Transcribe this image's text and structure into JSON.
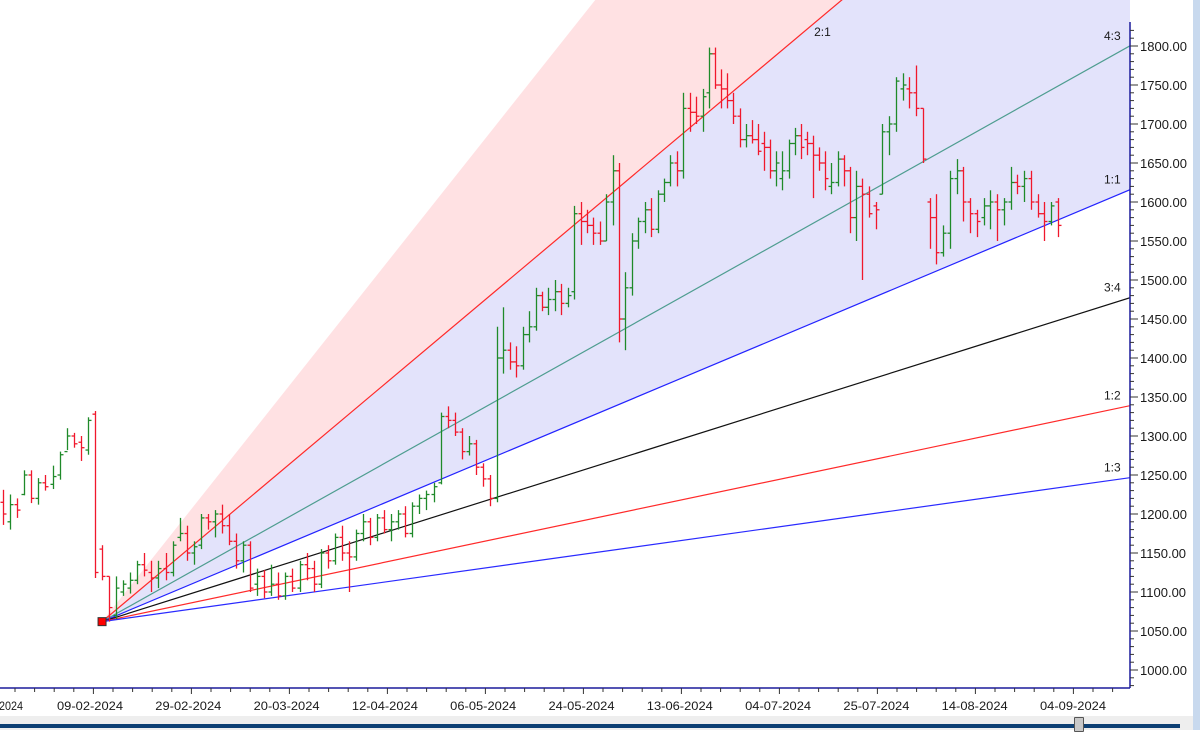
{
  "chart_data": {
    "type": "ohlc",
    "title": "",
    "xlabel": "",
    "ylabel": "",
    "ylim": [
      1000,
      1800
    ],
    "y_ticks": [
      "1000.00",
      "1050.00",
      "1100.00",
      "1150.00",
      "1200.00",
      "1250.00",
      "1300.00",
      "1350.00",
      "1400.00",
      "1450.00",
      "1500.00",
      "1550.00",
      "1600.00",
      "1650.00",
      "1700.00",
      "1750.00",
      "1800.00"
    ],
    "x_ticks": [
      "2024",
      "09-02-2024",
      "29-02-2024",
      "20-03-2024",
      "12-04-2024",
      "06-05-2024",
      "24-05-2024",
      "13-06-2024",
      "04-07-2024",
      "25-07-2024",
      "14-08-2024",
      "04-09-2024"
    ],
    "grid": false,
    "colors": {
      "up": "#1f8a2a",
      "down": "#f0182c",
      "axis": "#1c1c9c",
      "fan_fill_upper": "#ffe1e3",
      "fan_fill_main": "#e3e3fb"
    },
    "bars_ohlc": [
      [
        1215,
        1231,
        1186,
        1200
      ],
      [
        1190,
        1225,
        1180,
        1212
      ],
      [
        1212,
        1220,
        1195,
        1205
      ],
      [
        1225,
        1256,
        1224,
        1250
      ],
      [
        1250,
        1256,
        1214,
        1220
      ],
      [
        1220,
        1246,
        1212,
        1240
      ],
      [
        1240,
        1250,
        1230,
        1235
      ],
      [
        1238,
        1262,
        1232,
        1248
      ],
      [
        1250,
        1280,
        1244,
        1276
      ],
      [
        1280,
        1310,
        1282,
        1300
      ],
      [
        1300,
        1304,
        1285,
        1290
      ],
      [
        1292,
        1300,
        1268,
        1285
      ],
      [
        1282,
        1324,
        1276,
        1320
      ],
      [
        1328,
        1332,
        1118,
        1125
      ],
      [
        1155,
        1160,
        1115,
        1120
      ],
      [
        1120,
        1120,
        1062,
        1080
      ],
      [
        1070,
        1120,
        1065,
        1105
      ],
      [
        1100,
        1115,
        1095,
        1110
      ],
      [
        1105,
        1125,
        1098,
        1115
      ],
      [
        1115,
        1140,
        1110,
        1135
      ],
      [
        1135,
        1150,
        1120,
        1128
      ],
      [
        1125,
        1140,
        1100,
        1118
      ],
      [
        1118,
        1140,
        1105,
        1130
      ],
      [
        1130,
        1150,
        1115,
        1125
      ],
      [
        1125,
        1165,
        1120,
        1160
      ],
      [
        1170,
        1195,
        1165,
        1175
      ],
      [
        1175,
        1185,
        1140,
        1150
      ],
      [
        1150,
        1165,
        1135,
        1158
      ],
      [
        1160,
        1200,
        1155,
        1195
      ],
      [
        1195,
        1200,
        1180,
        1190
      ],
      [
        1190,
        1205,
        1170,
        1200
      ],
      [
        1200,
        1212,
        1175,
        1185
      ],
      [
        1185,
        1200,
        1160,
        1165
      ],
      [
        1165,
        1175,
        1130,
        1140
      ],
      [
        1140,
        1165,
        1125,
        1160
      ],
      [
        1160,
        1165,
        1100,
        1105
      ],
      [
        1110,
        1130,
        1095,
        1120
      ],
      [
        1120,
        1128,
        1092,
        1100
      ],
      [
        1100,
        1135,
        1095,
        1110
      ],
      [
        1110,
        1125,
        1090,
        1095
      ],
      [
        1095,
        1125,
        1090,
        1120
      ],
      [
        1120,
        1130,
        1100,
        1105
      ],
      [
        1105,
        1140,
        1100,
        1135
      ],
      [
        1135,
        1150,
        1115,
        1130
      ],
      [
        1130,
        1140,
        1100,
        1110
      ],
      [
        1110,
        1155,
        1105,
        1150
      ],
      [
        1150,
        1160,
        1130,
        1140
      ],
      [
        1140,
        1175,
        1135,
        1170
      ],
      [
        1170,
        1185,
        1140,
        1150
      ],
      [
        1150,
        1165,
        1100,
        1145
      ],
      [
        1145,
        1180,
        1140,
        1175
      ],
      [
        1175,
        1200,
        1165,
        1190
      ],
      [
        1190,
        1195,
        1160,
        1170
      ],
      [
        1170,
        1200,
        1165,
        1195
      ],
      [
        1195,
        1205,
        1175,
        1180
      ],
      [
        1180,
        1200,
        1165,
        1190
      ],
      [
        1190,
        1205,
        1180,
        1200
      ],
      [
        1200,
        1210,
        1170,
        1175
      ],
      [
        1175,
        1215,
        1170,
        1210
      ],
      [
        1210,
        1225,
        1200,
        1220
      ],
      [
        1220,
        1230,
        1205,
        1225
      ],
      [
        1225,
        1240,
        1215,
        1235
      ],
      [
        1240,
        1330,
        1238,
        1325
      ],
      [
        1325,
        1338,
        1310,
        1320
      ],
      [
        1320,
        1330,
        1300,
        1305
      ],
      [
        1305,
        1310,
        1270,
        1280
      ],
      [
        1280,
        1300,
        1275,
        1290
      ],
      [
        1290,
        1295,
        1250,
        1260
      ],
      [
        1260,
        1265,
        1235,
        1245
      ],
      [
        1245,
        1250,
        1210,
        1220
      ],
      [
        1220,
        1440,
        1215,
        1400
      ],
      [
        1400,
        1465,
        1380,
        1410
      ],
      [
        1410,
        1420,
        1385,
        1395
      ],
      [
        1395,
        1415,
        1375,
        1390
      ],
      [
        1390,
        1440,
        1385,
        1430
      ],
      [
        1430,
        1460,
        1420,
        1440
      ],
      [
        1440,
        1490,
        1435,
        1480
      ],
      [
        1480,
        1485,
        1460,
        1465
      ],
      [
        1465,
        1490,
        1455,
        1475
      ],
      [
        1475,
        1500,
        1460,
        1485
      ],
      [
        1485,
        1495,
        1455,
        1470
      ],
      [
        1470,
        1490,
        1465,
        1480
      ],
      [
        1485,
        1595,
        1475,
        1585
      ],
      [
        1585,
        1600,
        1545,
        1575
      ],
      [
        1575,
        1590,
        1560,
        1570
      ],
      [
        1570,
        1580,
        1545,
        1560
      ],
      [
        1560,
        1575,
        1545,
        1550
      ],
      [
        1550,
        1610,
        1550,
        1600
      ],
      [
        1600,
        1660,
        1570,
        1640
      ],
      [
        1640,
        1650,
        1420,
        1450
      ],
      [
        1450,
        1510,
        1410,
        1490
      ],
      [
        1490,
        1560,
        1480,
        1550
      ],
      [
        1550,
        1580,
        1540,
        1575
      ],
      [
        1575,
        1600,
        1560,
        1590
      ],
      [
        1590,
        1605,
        1555,
        1565
      ],
      [
        1565,
        1615,
        1560,
        1610
      ],
      [
        1610,
        1630,
        1600,
        1625
      ],
      [
        1625,
        1660,
        1620,
        1650
      ],
      [
        1650,
        1665,
        1620,
        1640
      ],
      [
        1640,
        1740,
        1630,
        1720
      ],
      [
        1720,
        1740,
        1690,
        1715
      ],
      [
        1715,
        1735,
        1700,
        1710
      ],
      [
        1710,
        1745,
        1690,
        1735
      ],
      [
        1740,
        1798,
        1720,
        1790
      ],
      [
        1790,
        1798,
        1745,
        1750
      ],
      [
        1750,
        1770,
        1720,
        1745
      ],
      [
        1745,
        1765,
        1720,
        1730
      ],
      [
        1730,
        1740,
        1700,
        1710
      ],
      [
        1710,
        1720,
        1670,
        1680
      ],
      [
        1680,
        1700,
        1670,
        1685
      ],
      [
        1685,
        1705,
        1675,
        1680
      ],
      [
        1680,
        1700,
        1660,
        1665
      ],
      [
        1675,
        1690,
        1640,
        1670
      ],
      [
        1670,
        1680,
        1630,
        1640
      ],
      [
        1640,
        1665,
        1620,
        1650
      ],
      [
        1630,
        1665,
        1615,
        1640
      ],
      [
        1640,
        1680,
        1630,
        1675
      ],
      [
        1675,
        1695,
        1660,
        1685
      ],
      [
        1685,
        1700,
        1655,
        1670
      ],
      [
        1680,
        1690,
        1660,
        1675
      ],
      [
        1675,
        1685,
        1605,
        1660
      ],
      [
        1660,
        1670,
        1640,
        1650
      ],
      [
        1650,
        1665,
        1615,
        1630
      ],
      [
        1620,
        1650,
        1610,
        1625
      ],
      [
        1625,
        1665,
        1620,
        1655
      ],
      [
        1655,
        1660,
        1620,
        1640
      ],
      [
        1640,
        1645,
        1560,
        1580
      ],
      [
        1580,
        1640,
        1550,
        1620
      ],
      [
        1620,
        1630,
        1500,
        1610
      ],
      [
        1610,
        1620,
        1580,
        1585
      ],
      [
        1595,
        1600,
        1565,
        1590
      ],
      [
        1610,
        1700,
        1610,
        1690
      ],
      [
        1690,
        1710,
        1660,
        1700
      ],
      [
        1700,
        1760,
        1690,
        1755
      ],
      [
        1745,
        1765,
        1730,
        1750
      ],
      [
        1745,
        1760,
        1720,
        1740
      ],
      [
        1740,
        1775,
        1710,
        1720
      ],
      [
        1720,
        1720,
        1650,
        1655
      ],
      [
        1600,
        1605,
        1540,
        1580
      ],
      [
        1580,
        1610,
        1520,
        1535
      ],
      [
        1535,
        1570,
        1530,
        1560
      ],
      [
        1560,
        1640,
        1540,
        1630
      ],
      [
        1630,
        1655,
        1610,
        1640
      ],
      [
        1640,
        1645,
        1575,
        1600
      ],
      [
        1600,
        1605,
        1560,
        1585
      ],
      [
        1585,
        1590,
        1555,
        1575
      ],
      [
        1580,
        1605,
        1570,
        1595
      ],
      [
        1595,
        1615,
        1565,
        1600
      ],
      [
        1600,
        1610,
        1550,
        1590
      ],
      [
        1590,
        1605,
        1570,
        1600
      ],
      [
        1600,
        1645,
        1590,
        1625
      ],
      [
        1625,
        1635,
        1610,
        1620
      ],
      [
        1620,
        1640,
        1600,
        1630
      ],
      [
        1630,
        1640,
        1590,
        1600
      ],
      [
        1600,
        1610,
        1580,
        1585
      ],
      [
        1585,
        1600,
        1550,
        1575
      ],
      [
        1575,
        1600,
        1570,
        1595
      ],
      [
        1600,
        1605,
        1555,
        1570
      ]
    ],
    "gann_fan": {
      "origin_price": 1062,
      "origin_bar": 14,
      "unit_price_per_bar": 3.62,
      "anchor_marker_color": "#ff0000",
      "lines": [
        {
          "ratio": 3,
          "label": "",
          "color": "#ff9999"
        },
        {
          "ratio": 2,
          "label": "2:1",
          "color": "#ff2a2a"
        },
        {
          "ratio": 1.3333,
          "label": "4:3",
          "color": "#4e9d90"
        },
        {
          "ratio": 1,
          "label": "1:1",
          "color": "#2323ff"
        },
        {
          "ratio": 0.75,
          "label": "3:4",
          "color": "#111111"
        },
        {
          "ratio": 0.5,
          "label": "1:2",
          "color": "#ff2a2a"
        },
        {
          "ratio": 0.3333,
          "label": "1:3",
          "color": "#2a2aff"
        }
      ]
    }
  }
}
